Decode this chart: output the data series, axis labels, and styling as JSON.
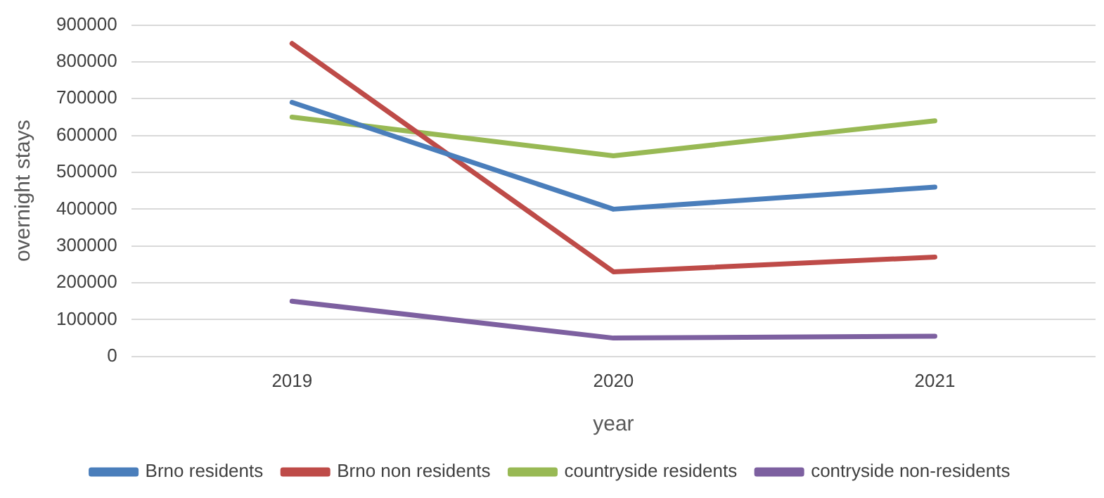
{
  "chart_data": {
    "type": "line",
    "xlabel": "year",
    "ylabel": "overnight stays",
    "categories": [
      "2019",
      "2020",
      "2021"
    ],
    "series": [
      {
        "name": "Brno residents",
        "color": "#4a7ebb",
        "values": [
          690000,
          400000,
          460000
        ]
      },
      {
        "name": "Brno non residents",
        "color": "#be4b48",
        "values": [
          850000,
          230000,
          270000
        ]
      },
      {
        "name": "countryside residents",
        "color": "#98b954",
        "values": [
          650000,
          545000,
          640000
        ]
      },
      {
        "name": "contryside non-residents",
        "color": "#7d60a0",
        "values": [
          150000,
          50000,
          55000
        ]
      }
    ],
    "ylim": [
      0,
      900000
    ],
    "yticks": [
      0,
      100000,
      200000,
      300000,
      400000,
      500000,
      600000,
      700000,
      800000,
      900000
    ],
    "grid": "y",
    "legend": "bottom",
    "marker": "none",
    "line_style": "solid"
  }
}
